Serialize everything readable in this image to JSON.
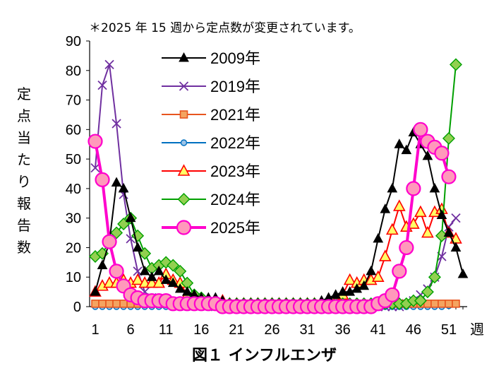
{
  "chart_data": {
    "type": "line",
    "title": "図１ インフルエンザ",
    "note": "＊2025 年 15 週から定点数が変更されています。",
    "ylabel": "定点当たり報告数",
    "xlabel": "週",
    "ylim": [
      0,
      90
    ],
    "xlim": [
      1,
      53
    ],
    "yticks": [
      "0",
      "10",
      "20",
      "30",
      "40",
      "50",
      "60",
      "70",
      "80",
      "90"
    ],
    "xticks": [
      "1",
      "6",
      "11",
      "16",
      "21",
      "26",
      "31",
      "36",
      "41",
      "46",
      "51"
    ],
    "xticks_values": [
      1,
      6,
      11,
      16,
      21,
      26,
      31,
      36,
      41,
      46,
      51
    ],
    "legend_position": "top-center",
    "grid": false,
    "series": [
      {
        "name": "2009年",
        "color": "#000000",
        "marker": "triangle-filled",
        "width": 2,
        "x": [
          1,
          2,
          3,
          4,
          5,
          6,
          7,
          8,
          9,
          10,
          11,
          12,
          13,
          14,
          15,
          16,
          17,
          18,
          19,
          20,
          21,
          22,
          23,
          24,
          25,
          26,
          27,
          28,
          29,
          30,
          31,
          32,
          33,
          34,
          35,
          36,
          37,
          38,
          39,
          40,
          41,
          42,
          43,
          44,
          45,
          46,
          47,
          48,
          49,
          50,
          51,
          52,
          53
        ],
        "values": [
          5,
          14,
          22,
          42,
          40,
          30,
          20,
          12,
          10,
          12,
          9,
          8,
          6,
          5,
          4,
          3,
          3,
          3,
          2,
          1,
          1,
          1,
          1,
          1,
          1,
          1,
          1,
          1,
          1,
          1,
          1,
          1,
          2,
          3,
          4,
          5,
          5,
          6,
          7,
          12,
          23,
          33,
          40,
          55,
          53,
          59,
          55,
          51,
          40,
          31,
          25,
          20,
          11
        ]
      },
      {
        "name": "2019年",
        "color": "#7030A0",
        "marker": "x",
        "width": 2,
        "x": [
          1,
          2,
          3,
          4,
          5,
          6,
          7,
          8,
          9,
          10,
          11,
          12,
          13,
          14,
          15,
          16,
          17,
          18,
          19,
          20,
          21,
          22,
          23,
          24,
          25,
          26,
          27,
          28,
          29,
          30,
          31,
          32,
          33,
          34,
          35,
          36,
          37,
          38,
          39,
          40,
          41,
          42,
          43,
          44,
          45,
          46,
          47,
          48,
          49,
          50,
          51,
          52
        ],
        "values": [
          47,
          75,
          82,
          62,
          38,
          23,
          12,
          5,
          3,
          2,
          1,
          1,
          1,
          1,
          1,
          1,
          1,
          0,
          0,
          0,
          0,
          0,
          0,
          0,
          0,
          0,
          0,
          0,
          0,
          0,
          0,
          0,
          0,
          0,
          0,
          0,
          0,
          0,
          0,
          0,
          0,
          0,
          0,
          0,
          1,
          2,
          4,
          6,
          10,
          17,
          27,
          30
        ]
      },
      {
        "name": "2021年",
        "color": "#E8551F",
        "fill": "#F4A460",
        "marker": "square",
        "width": 2,
        "x": [
          1,
          2,
          3,
          4,
          5,
          6,
          7,
          8,
          9,
          10,
          11,
          12,
          13,
          14,
          15,
          16,
          17,
          18,
          19,
          20,
          21,
          22,
          23,
          24,
          25,
          26,
          27,
          28,
          29,
          30,
          31,
          32,
          33,
          34,
          35,
          36,
          37,
          38,
          39,
          40,
          41,
          42,
          43,
          44,
          45,
          46,
          47,
          48,
          49,
          50,
          51,
          52
        ],
        "values": [
          1,
          1,
          1,
          1,
          1,
          1,
          1,
          1,
          1,
          1,
          1,
          1,
          1,
          1,
          1,
          1,
          1,
          1,
          1,
          1,
          1,
          1,
          1,
          1,
          1,
          1,
          1,
          1,
          1,
          1,
          1,
          1,
          1,
          1,
          1,
          1,
          1,
          1,
          1,
          1,
          1,
          1,
          1,
          1,
          1,
          1,
          1,
          1,
          1,
          1,
          1,
          1
        ]
      },
      {
        "name": "2022年",
        "color": "#0070C0",
        "fill": "#9DC3E6",
        "marker": "circle-small",
        "width": 2,
        "x": [
          1,
          2,
          3,
          4,
          5,
          6,
          7,
          8,
          9,
          10,
          11,
          12,
          13,
          14,
          15,
          16,
          17,
          18,
          19,
          20,
          21,
          22,
          23,
          24,
          25,
          26,
          27,
          28,
          29,
          30,
          31,
          32,
          33,
          34,
          35,
          36,
          37,
          38,
          39,
          40,
          41,
          42,
          43,
          44,
          45,
          46,
          47,
          48,
          49,
          50,
          51,
          52
        ],
        "values": [
          0,
          0,
          0,
          0,
          0,
          0,
          0,
          0,
          0,
          0,
          0,
          0,
          0,
          0,
          0,
          0,
          0,
          0,
          0,
          0,
          0,
          0,
          0,
          0,
          0,
          0,
          0,
          0,
          0,
          0,
          0,
          0,
          0,
          0,
          0,
          0,
          0,
          0,
          0,
          0,
          0,
          0,
          0,
          0,
          0,
          0,
          0,
          0,
          0,
          0,
          0.3,
          1
        ]
      },
      {
        "name": "2023年",
        "color": "#FF0000",
        "fill": "#FFFF66",
        "marker": "triangle-open",
        "width": 2,
        "x": [
          1,
          2,
          3,
          4,
          5,
          6,
          7,
          8,
          9,
          10,
          11,
          12,
          13,
          14,
          15,
          16,
          17,
          18,
          19,
          20,
          21,
          22,
          23,
          24,
          25,
          26,
          27,
          28,
          29,
          30,
          31,
          32,
          33,
          34,
          35,
          36,
          37,
          38,
          39,
          40,
          41,
          42,
          43,
          44,
          45,
          46,
          47,
          48,
          49,
          50,
          51,
          52
        ],
        "values": [
          5,
          7,
          8,
          8,
          9,
          8,
          9,
          8,
          8,
          8,
          11,
          9,
          8,
          4,
          3,
          2,
          2,
          2,
          2,
          1,
          1,
          1,
          1,
          1,
          1,
          1,
          1,
          1,
          1,
          1,
          1,
          1,
          1,
          1,
          2,
          4,
          9,
          8,
          9,
          9,
          10,
          17,
          26,
          34,
          27,
          28,
          32,
          25,
          32,
          33,
          25,
          23
        ]
      },
      {
        "name": "2024年",
        "color": "#00A000",
        "fill": "#92D050",
        "marker": "diamond",
        "width": 2,
        "x": [
          1,
          2,
          3,
          4,
          5,
          6,
          7,
          8,
          9,
          10,
          11,
          12,
          13,
          14,
          15,
          16,
          17,
          18,
          19,
          20,
          21,
          22,
          23,
          24,
          25,
          26,
          27,
          28,
          29,
          30,
          31,
          32,
          33,
          34,
          35,
          36,
          37,
          38,
          39,
          40,
          41,
          42,
          43,
          44,
          45,
          46,
          47,
          48,
          49,
          50,
          51,
          52
        ],
        "values": [
          17,
          18,
          22,
          25,
          28,
          30,
          24,
          18,
          13,
          14,
          15,
          14,
          12,
          8,
          4,
          3,
          2,
          2,
          1,
          1,
          1,
          1,
          1,
          1,
          1,
          1,
          1,
          1,
          1,
          1,
          1,
          1,
          1,
          1,
          1,
          1,
          1,
          1,
          1,
          1,
          1,
          1,
          1,
          1,
          1,
          2,
          2,
          5,
          10,
          24,
          57,
          82
        ]
      },
      {
        "name": "2025年",
        "color": "#FF00CC",
        "fill": "#FF99BB",
        "marker": "circle-big",
        "width": 4,
        "x": [
          1,
          2,
          3,
          4,
          5,
          6,
          7,
          8,
          9,
          10,
          11,
          12,
          13,
          14,
          15,
          16,
          17,
          18,
          19,
          20,
          21,
          22,
          23,
          24,
          25,
          26,
          27,
          28,
          29,
          30,
          31,
          32,
          33,
          34,
          35,
          36,
          37,
          38,
          39,
          40,
          41,
          42,
          43,
          44,
          45,
          46,
          47,
          48,
          49,
          50,
          51
        ],
        "values": [
          56,
          43,
          22,
          12,
          7,
          4,
          3,
          2,
          2,
          2,
          2,
          1,
          1,
          1,
          1,
          1,
          1,
          1,
          0,
          0,
          0,
          0,
          0,
          0,
          0,
          0,
          0,
          0,
          0,
          0,
          0,
          0,
          0,
          0,
          0,
          0,
          0,
          0,
          0,
          0,
          1,
          2,
          4,
          12,
          20,
          40,
          60,
          56,
          54,
          52,
          44
        ]
      }
    ]
  }
}
